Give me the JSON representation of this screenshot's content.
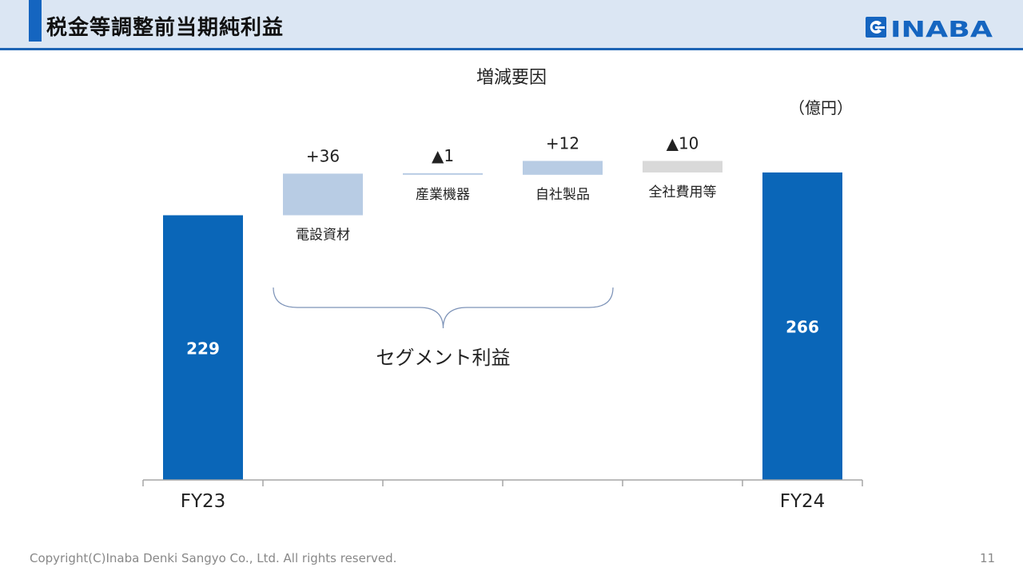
{
  "header": {
    "title": "税金等調整前当期純利益",
    "logo_text": "INABA",
    "accent_color": "#1565c0"
  },
  "chart_data": {
    "type": "waterfall",
    "title": "増減要因",
    "unit": "（億円）",
    "categories": [
      "FY23",
      "電設資材",
      "産業機器",
      "自社製品",
      "全社費用等",
      "FY24"
    ],
    "values": [
      229,
      36,
      -1,
      12,
      -10,
      266
    ],
    "value_labels": [
      "229",
      "+36",
      "▲1",
      "+12",
      "▲10",
      "266"
    ],
    "bar_kinds": [
      "total",
      "increase",
      "decrease",
      "increase",
      "decrease",
      "total"
    ],
    "colors": {
      "total": "#0a66b8",
      "segment_change": "#b8cce4",
      "other_change": "#d9d9d9"
    },
    "group": {
      "label": "セグメント利益",
      "members": [
        "電設資材",
        "産業機器",
        "自社製品"
      ]
    }
  },
  "footer": {
    "copyright": "Copyright(C)Inaba Denki Sangyo Co., Ltd. All rights reserved.",
    "page_number": "11"
  }
}
